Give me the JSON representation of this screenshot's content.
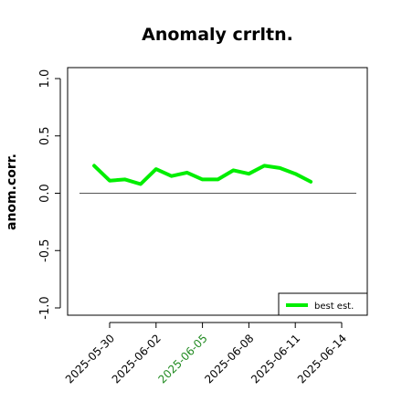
{
  "chart_data": {
    "type": "line",
    "title": "Anomaly crrltn.",
    "ylabel": "anom.corr.",
    "xlabel": "",
    "ylim": [
      -1.0,
      1.0
    ],
    "yticks": [
      "-1.0",
      "-0.5",
      "0.0",
      "0.5",
      "1.0"
    ],
    "ytick_values": [
      -1.0,
      -0.5,
      0.0,
      0.5,
      1.0
    ],
    "xticks": [
      "2025-05-30",
      "2025-06-02",
      "2025-06-05",
      "2025-06-08",
      "2025-06-11",
      "2025-06-14"
    ],
    "highlight_xtick": "2025-06-05",
    "highlight_color": "#228b22",
    "reference_line": 0.0,
    "series": [
      {
        "name": "best est.",
        "color": "#00ee00",
        "x": [
          "2025-05-29",
          "2025-05-30",
          "2025-05-31",
          "2025-06-01",
          "2025-06-02",
          "2025-06-03",
          "2025-06-04",
          "2025-06-05",
          "2025-06-06",
          "2025-06-07",
          "2025-06-08",
          "2025-06-09",
          "2025-06-10",
          "2025-06-11",
          "2025-06-12"
        ],
        "values": [
          0.24,
          0.11,
          0.12,
          0.08,
          0.21,
          0.15,
          0.18,
          0.12,
          0.12,
          0.2,
          0.17,
          0.24,
          0.22,
          0.17,
          0.1
        ]
      }
    ],
    "legend_position": "bottom-right",
    "grid": false
  }
}
